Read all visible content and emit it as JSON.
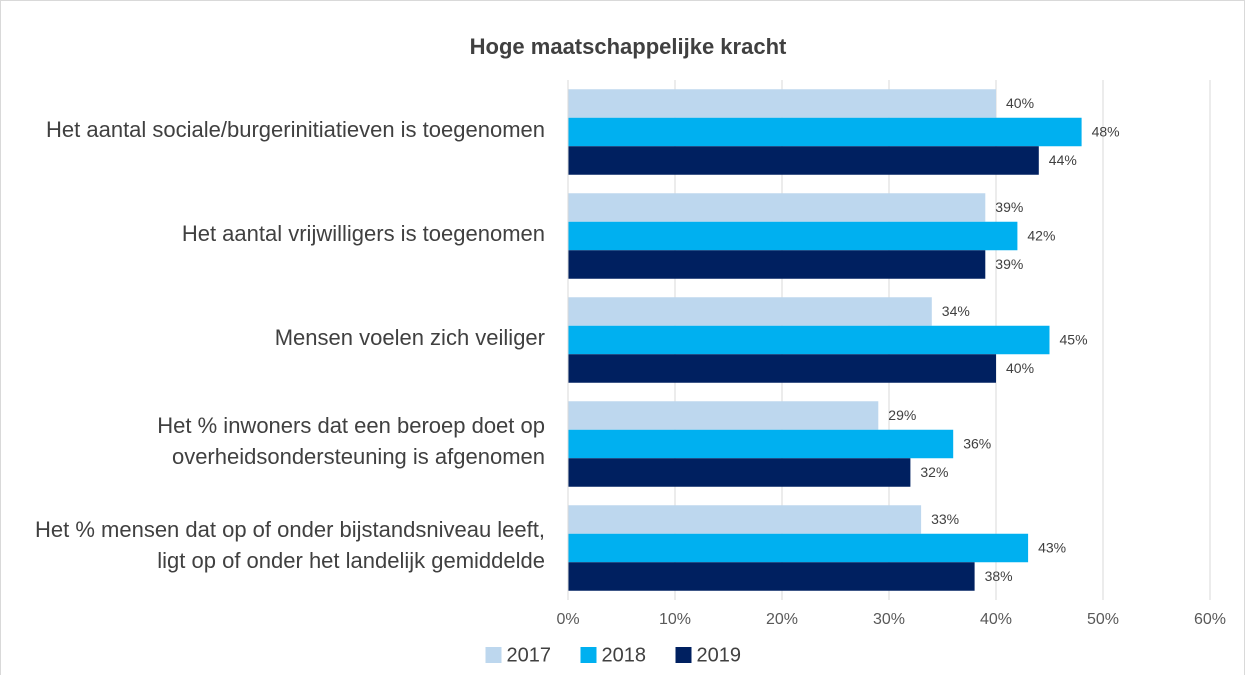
{
  "chart_data": {
    "type": "hbar",
    "title": "Hoge maatschappelijke kracht",
    "categories": [
      "Het aantal sociale/burgerinitiatieven is toegenomen",
      "Het aantal vrijwilligers is toegenomen",
      "Mensen voelen zich veiliger",
      "Het % inwoners dat een beroep doet op overheidsondersteuning is afgenomen",
      "Het % mensen dat op of onder bijstandsniveau leeft, ligt op of onder het landelijk gemiddelde"
    ],
    "series": [
      {
        "name": "2017",
        "color": "#bdd7ee",
        "values": [
          40,
          39,
          34,
          29,
          33
        ],
        "value_labels": [
          "40%",
          "39%",
          "34%",
          "29%",
          "33%"
        ]
      },
      {
        "name": "2018",
        "color": "#00b0f0",
        "values": [
          48,
          42,
          45,
          36,
          43
        ],
        "value_labels": [
          "48%",
          "42%",
          "45%",
          "36%",
          "43%"
        ]
      },
      {
        "name": "2019",
        "color": "#002060",
        "values": [
          44,
          39,
          40,
          32,
          38
        ],
        "value_labels": [
          "44%",
          "39%",
          "40%",
          "32%",
          "38%"
        ]
      }
    ],
    "xlim": [
      0,
      60
    ],
    "xticks": [
      {
        "value": 0,
        "label": "0%"
      },
      {
        "value": 10,
        "label": "10%"
      },
      {
        "value": 20,
        "label": "20%"
      },
      {
        "value": 30,
        "label": "30%"
      },
      {
        "value": 40,
        "label": "40%"
      },
      {
        "value": 50,
        "label": "50%"
      },
      {
        "value": 60,
        "label": "60%"
      }
    ],
    "grid": true,
    "legend": "bottom"
  }
}
